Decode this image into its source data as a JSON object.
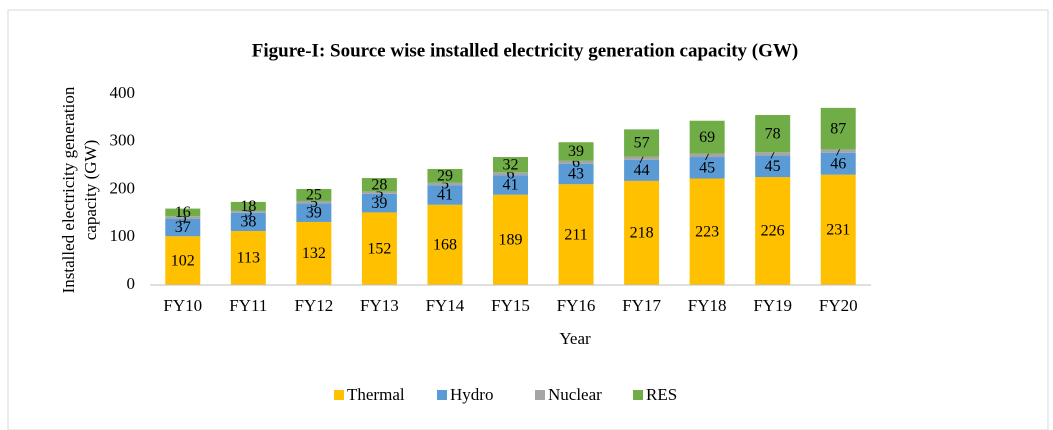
{
  "chart_data": {
    "type": "stacked_bar",
    "title": "Figure-I: Source wise installed electricity generation capacity (GW)",
    "y_label": [
      "Installed electricity generation",
      "capacity (GW)"
    ],
    "x_label": "Year",
    "categories": [
      "FY10",
      "FY11",
      "FY12",
      "FY13",
      "FY14",
      "FY15",
      "FY16",
      "FY17",
      "FY18",
      "FY19",
      "FY20"
    ],
    "series": [
      {
        "name": "Thermal",
        "color": "#ffc000",
        "values": [
          102,
          113,
          132,
          152,
          168,
          189,
          211,
          218,
          223,
          226,
          231
        ]
      },
      {
        "name": "Hydro",
        "color": "#5b9bd5",
        "values": [
          37,
          38,
          39,
          39,
          41,
          41,
          43,
          44,
          45,
          45,
          46
        ]
      },
      {
        "name": "Nuclear",
        "color": "#a5a5a5",
        "values": [
          5,
          5,
          5,
          5,
          5,
          6,
          6,
          7,
          7,
          7,
          7
        ]
      },
      {
        "name": "RES",
        "color": "#70ad47",
        "values": [
          16,
          18,
          25,
          28,
          29,
          32,
          39,
          57,
          69,
          78,
          87
        ]
      }
    ],
    "ylim": [
      0,
      400
    ],
    "yticks": [
      0,
      100,
      200,
      300,
      400
    ],
    "grid": false,
    "legend": "bottom"
  }
}
